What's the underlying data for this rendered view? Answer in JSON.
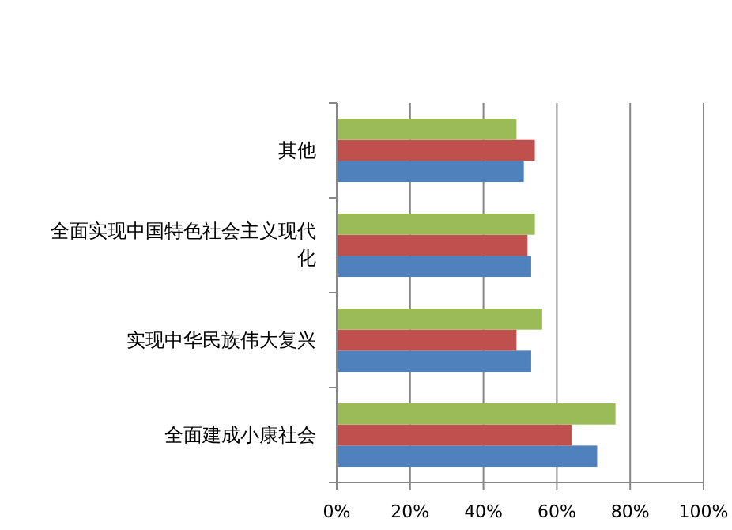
{
  "chart_data": {
    "type": "bar",
    "orientation": "horizontal",
    "categories": [
      "其他",
      "全面实现中国特色社会主义现代化",
      "实现中华民族伟大复兴",
      "全面建成小康社会"
    ],
    "series": [
      {
        "color": "#4f81bd",
        "values": [
          51,
          53,
          53,
          71
        ]
      },
      {
        "color": "#c0504d",
        "values": [
          54,
          52,
          49,
          64
        ]
      },
      {
        "color": "#9bbb59",
        "values": [
          49,
          54,
          56,
          76
        ]
      }
    ],
    "xlim": [
      0,
      100
    ],
    "xticks": [
      {
        "value": 0,
        "label": "0%"
      },
      {
        "value": 20,
        "label": "20%"
      },
      {
        "value": 40,
        "label": "40%"
      },
      {
        "value": 60,
        "label": "60%"
      },
      {
        "value": 80,
        "label": "80%"
      },
      {
        "value": 100,
        "label": "100%"
      }
    ],
    "grid": "x"
  }
}
